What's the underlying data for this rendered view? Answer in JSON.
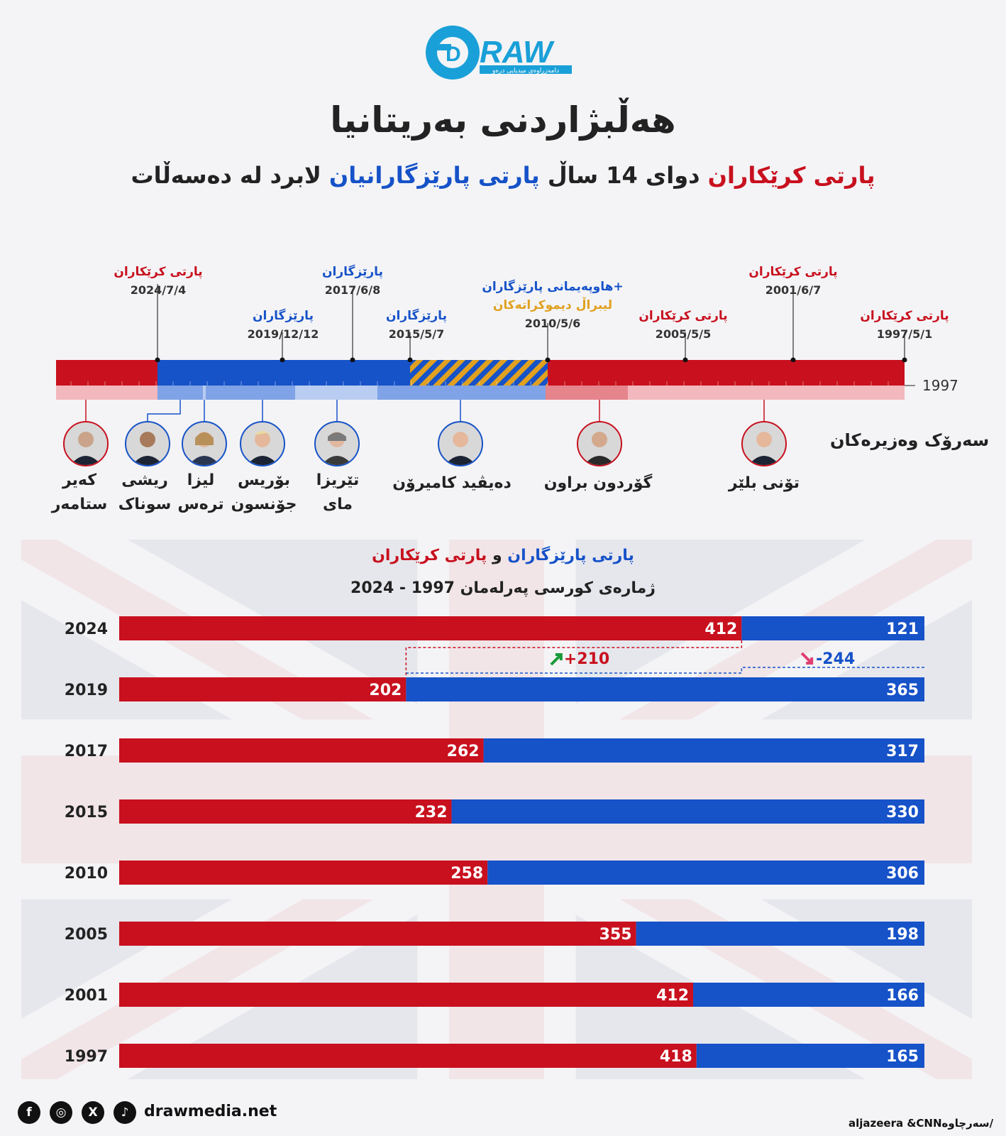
{
  "brand": {
    "logo_text": "RAW",
    "logo_letter": "D",
    "logo_tagline": "دامەزراوەی میدیایی درەو"
  },
  "title": "هەڵبژاردنی بەریتانیا",
  "subtitle": {
    "part1": "پارتی کرێکاران",
    "part2": " دوای 14 ساڵ ",
    "part3": "پارتی پارێزگارانیان",
    "part4": " لابرد لە دەسەڵات"
  },
  "timeline": {
    "start_year_label": "1997",
    "events": [
      {
        "label": "پارتی کرێکاران",
        "date": "2024/7/4",
        "party": "labour"
      },
      {
        "label": "پارێزگاران",
        "date": "2019/12/12",
        "party": "conservative"
      },
      {
        "label": "پارێزگاران",
        "date": "2017/6/8",
        "party": "conservative"
      },
      {
        "label": "پارێزگاران",
        "date": "2015/5/7",
        "party": "conservative"
      },
      {
        "label": "هاوپەیمانی پارێزگاران+",
        "label2": "لیبراڵ دیموکراتەکان",
        "date": "2010/5/6",
        "party": "coalition"
      },
      {
        "label": "پارتی کرێکاران",
        "date": "2005/5/5",
        "party": "labour"
      },
      {
        "label": "پارتی کرێکاران",
        "date": "2001/6/7",
        "party": "labour"
      },
      {
        "label": "پارتی کرێکاران",
        "date": "1997/5/1",
        "party": "labour"
      }
    ]
  },
  "prime_ministers": {
    "heading": "سەرۆک وەزیرەکان",
    "people": [
      {
        "line1": "کەیر",
        "line2": "ستامەر",
        "party": "labour"
      },
      {
        "line1": "ریشی",
        "line2": "سوناک",
        "party": "conservative"
      },
      {
        "line1": "لیزا",
        "line2": "ترەس",
        "party": "conservative"
      },
      {
        "line1": "بۆریس",
        "line2": "جۆنسون",
        "party": "conservative"
      },
      {
        "line1": "تێریزا",
        "line2": "مای",
        "party": "conservative"
      },
      {
        "line1": "دەیڤید کامیرۆن",
        "line2": "",
        "party": "conservative"
      },
      {
        "line1": "گۆردون براون",
        "line2": "",
        "party": "labour"
      },
      {
        "line1": "تۆنی بلێر",
        "line2": "",
        "party": "labour"
      }
    ]
  },
  "seats_section": {
    "heading_cons": "پارتی پارێزگاران",
    "heading_and": " و ",
    "heading_lab": "پارتی کرێکاران",
    "subheading": "ژمارەی کورسی پەرلەمان 1997 - 2024"
  },
  "colors": {
    "labour": "#c8101e",
    "conservative": "#1652c8",
    "coalition_gold": "#e0a020"
  },
  "chart_data": {
    "type": "bar",
    "stacked": true,
    "orientation": "horizontal",
    "title": "ژمارەی کورسی پەرلەمان 1997 - 2024",
    "categories": [
      "2024",
      "2019",
      "2017",
      "2015",
      "2010",
      "2005",
      "2001",
      "1997"
    ],
    "series": [
      {
        "name": "پارتی کرێکاران",
        "values": [
          412,
          202,
          262,
          232,
          258,
          355,
          412,
          418
        ]
      },
      {
        "name": "پارتی پارێزگاران",
        "values": [
          121,
          365,
          317,
          330,
          306,
          198,
          166,
          165
        ]
      }
    ],
    "annotations": {
      "labour_change": "+210",
      "conservative_change": "-244"
    }
  },
  "footer": {
    "website": "drawmedia.net",
    "source_label": "سەرچاوە/",
    "source": "aljazeera &CNN",
    "social": [
      "f",
      "◎",
      "X",
      "♪"
    ]
  }
}
